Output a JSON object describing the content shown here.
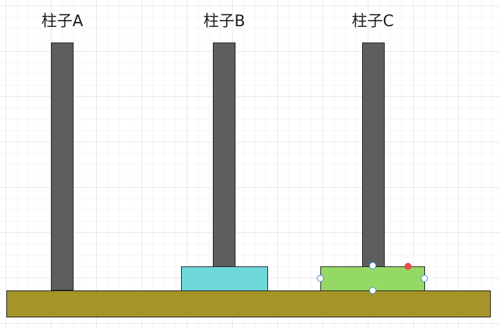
{
  "labels": {
    "pole_a": "柱子A",
    "pole_b": "柱子B",
    "pole_c": "柱子C"
  },
  "colors": {
    "pole": "#5e5e5e",
    "disk_b": "#6fd7d9",
    "disk_c": "#95d965",
    "base": "#a59428",
    "rotate_handle": "#e84b4b"
  }
}
